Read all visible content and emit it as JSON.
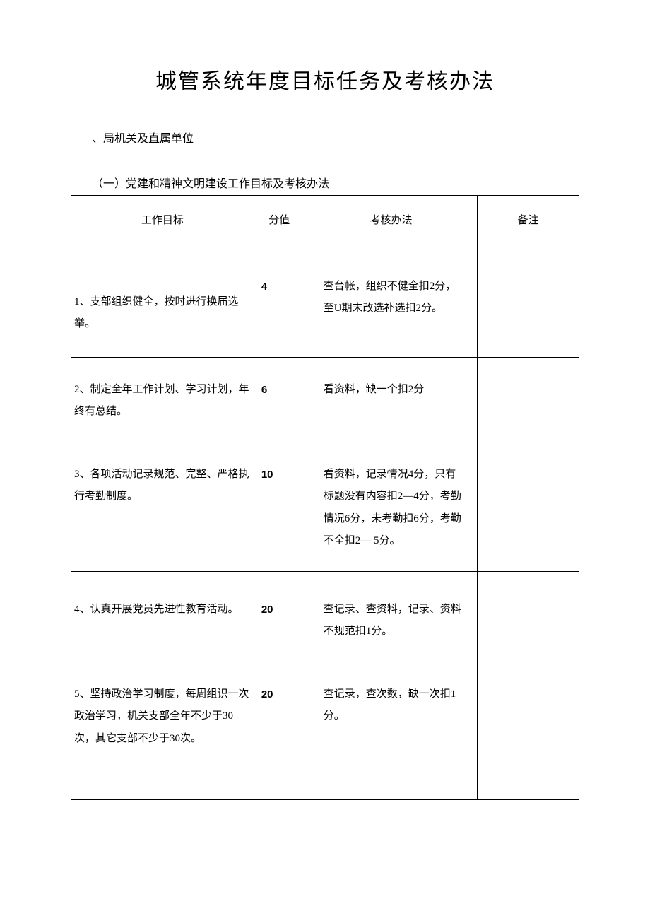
{
  "document": {
    "title": "城管系统年度目标任务及考核办法",
    "section_heading": "、局机关及直属单位",
    "subsection_heading": "（一）党建和精神文明建设工作目标及考核办法",
    "colors": {
      "background": "#ffffff",
      "text": "#000000",
      "border": "#000000"
    },
    "typography": {
      "title_fontsize": 30,
      "body_fontsize": 15,
      "heading_fontsize": 16,
      "font_family": "SimSun"
    },
    "table": {
      "columns": [
        {
          "label": "工作目标",
          "width_pct": 36,
          "align": "left"
        },
        {
          "label": "分值",
          "width_pct": 10,
          "align": "left"
        },
        {
          "label": "考核办法",
          "width_pct": 34,
          "align": "left"
        },
        {
          "label": "备注",
          "width_pct": 20,
          "align": "left"
        }
      ],
      "rows": [
        {
          "goal": "1、支部组织健全，按时进行换届选  举。",
          "score": "4",
          "method": "查台帐，组织不健全扣2分，至U期末改选补选扣2分。",
          "note": ""
        },
        {
          "goal": "2、制定全年工作计划、学习计划，年终有总结。",
          "score": "6",
          "method": "看资料，缺一个扣2分",
          "note": ""
        },
        {
          "goal": "3、各项活动记录规范、完整、严格执行考勤制度。",
          "score": "10",
          "method": "看资料，记录情况4分，只有标题没有内容扣2—4分，考勤情况6分，未考勤扣6分，考勤不全扣2— 5分。",
          "note": ""
        },
        {
          "goal": "4、认真开展党员先进性教育活动。",
          "score": "20",
          "method": "查记录、查资料，记录、资料不规范扣1分。",
          "note": ""
        },
        {
          "goal": "5、坚持政治学习制度，每周组识一次政治学习，机关支部全年不少于30次，其它支部不少于30次。",
          "score": "20",
          "method": "查记录，查次数，缺一次扣1分。",
          "note": ""
        }
      ]
    }
  }
}
